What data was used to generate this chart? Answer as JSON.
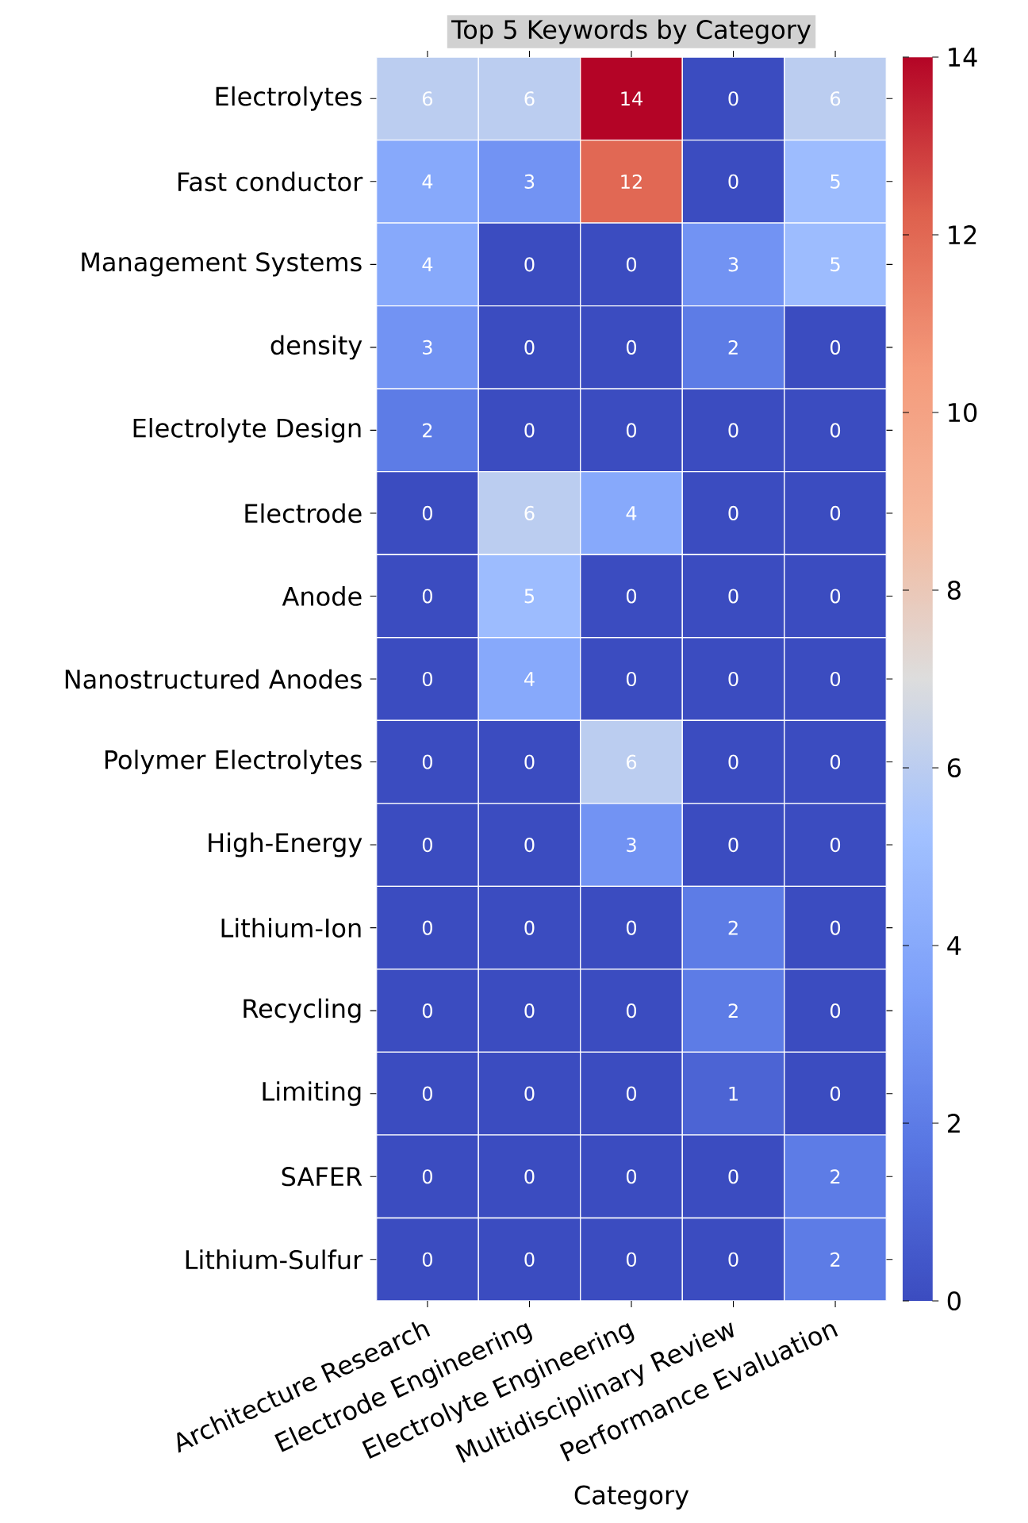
{
  "chart_data": {
    "type": "heatmap",
    "title": "Top 5 Keywords by Category",
    "xlabel": "Category",
    "categories": [
      "Architecture Research",
      "Electrode Engineering",
      "Electrolyte Engineering",
      "Multidisciplinary Review",
      "Performance Evaluation"
    ],
    "y_categories": [
      "Electrolytes",
      "Fast conductor",
      "Management Systems",
      "density",
      "Electrolyte Design",
      "Electrode",
      "Anode",
      "Nanostructured Anodes",
      "Polymer Electrolytes",
      "High-Energy",
      "Lithium-Ion",
      "Recycling",
      "Limiting",
      "SAFER",
      "Lithium-Sulfur"
    ],
    "cells": [
      [
        6,
        6,
        14,
        0,
        6
      ],
      [
        4,
        3,
        12,
        0,
        5
      ],
      [
        4,
        0,
        0,
        3,
        5
      ],
      [
        3,
        0,
        0,
        2,
        0
      ],
      [
        2,
        0,
        0,
        0,
        0
      ],
      [
        0,
        6,
        4,
        0,
        0
      ],
      [
        0,
        5,
        0,
        0,
        0
      ],
      [
        0,
        4,
        0,
        0,
        0
      ],
      [
        0,
        0,
        6,
        0,
        0
      ],
      [
        0,
        0,
        3,
        0,
        0
      ],
      [
        0,
        0,
        0,
        2,
        0
      ],
      [
        0,
        0,
        0,
        2,
        0
      ],
      [
        0,
        0,
        0,
        1,
        0
      ],
      [
        0,
        0,
        0,
        0,
        2
      ],
      [
        0,
        0,
        0,
        0,
        2
      ]
    ],
    "data_labels": true,
    "clim": [
      0,
      14
    ],
    "cticks": [
      0,
      2,
      4,
      6,
      8,
      10,
      12,
      14
    ]
  }
}
